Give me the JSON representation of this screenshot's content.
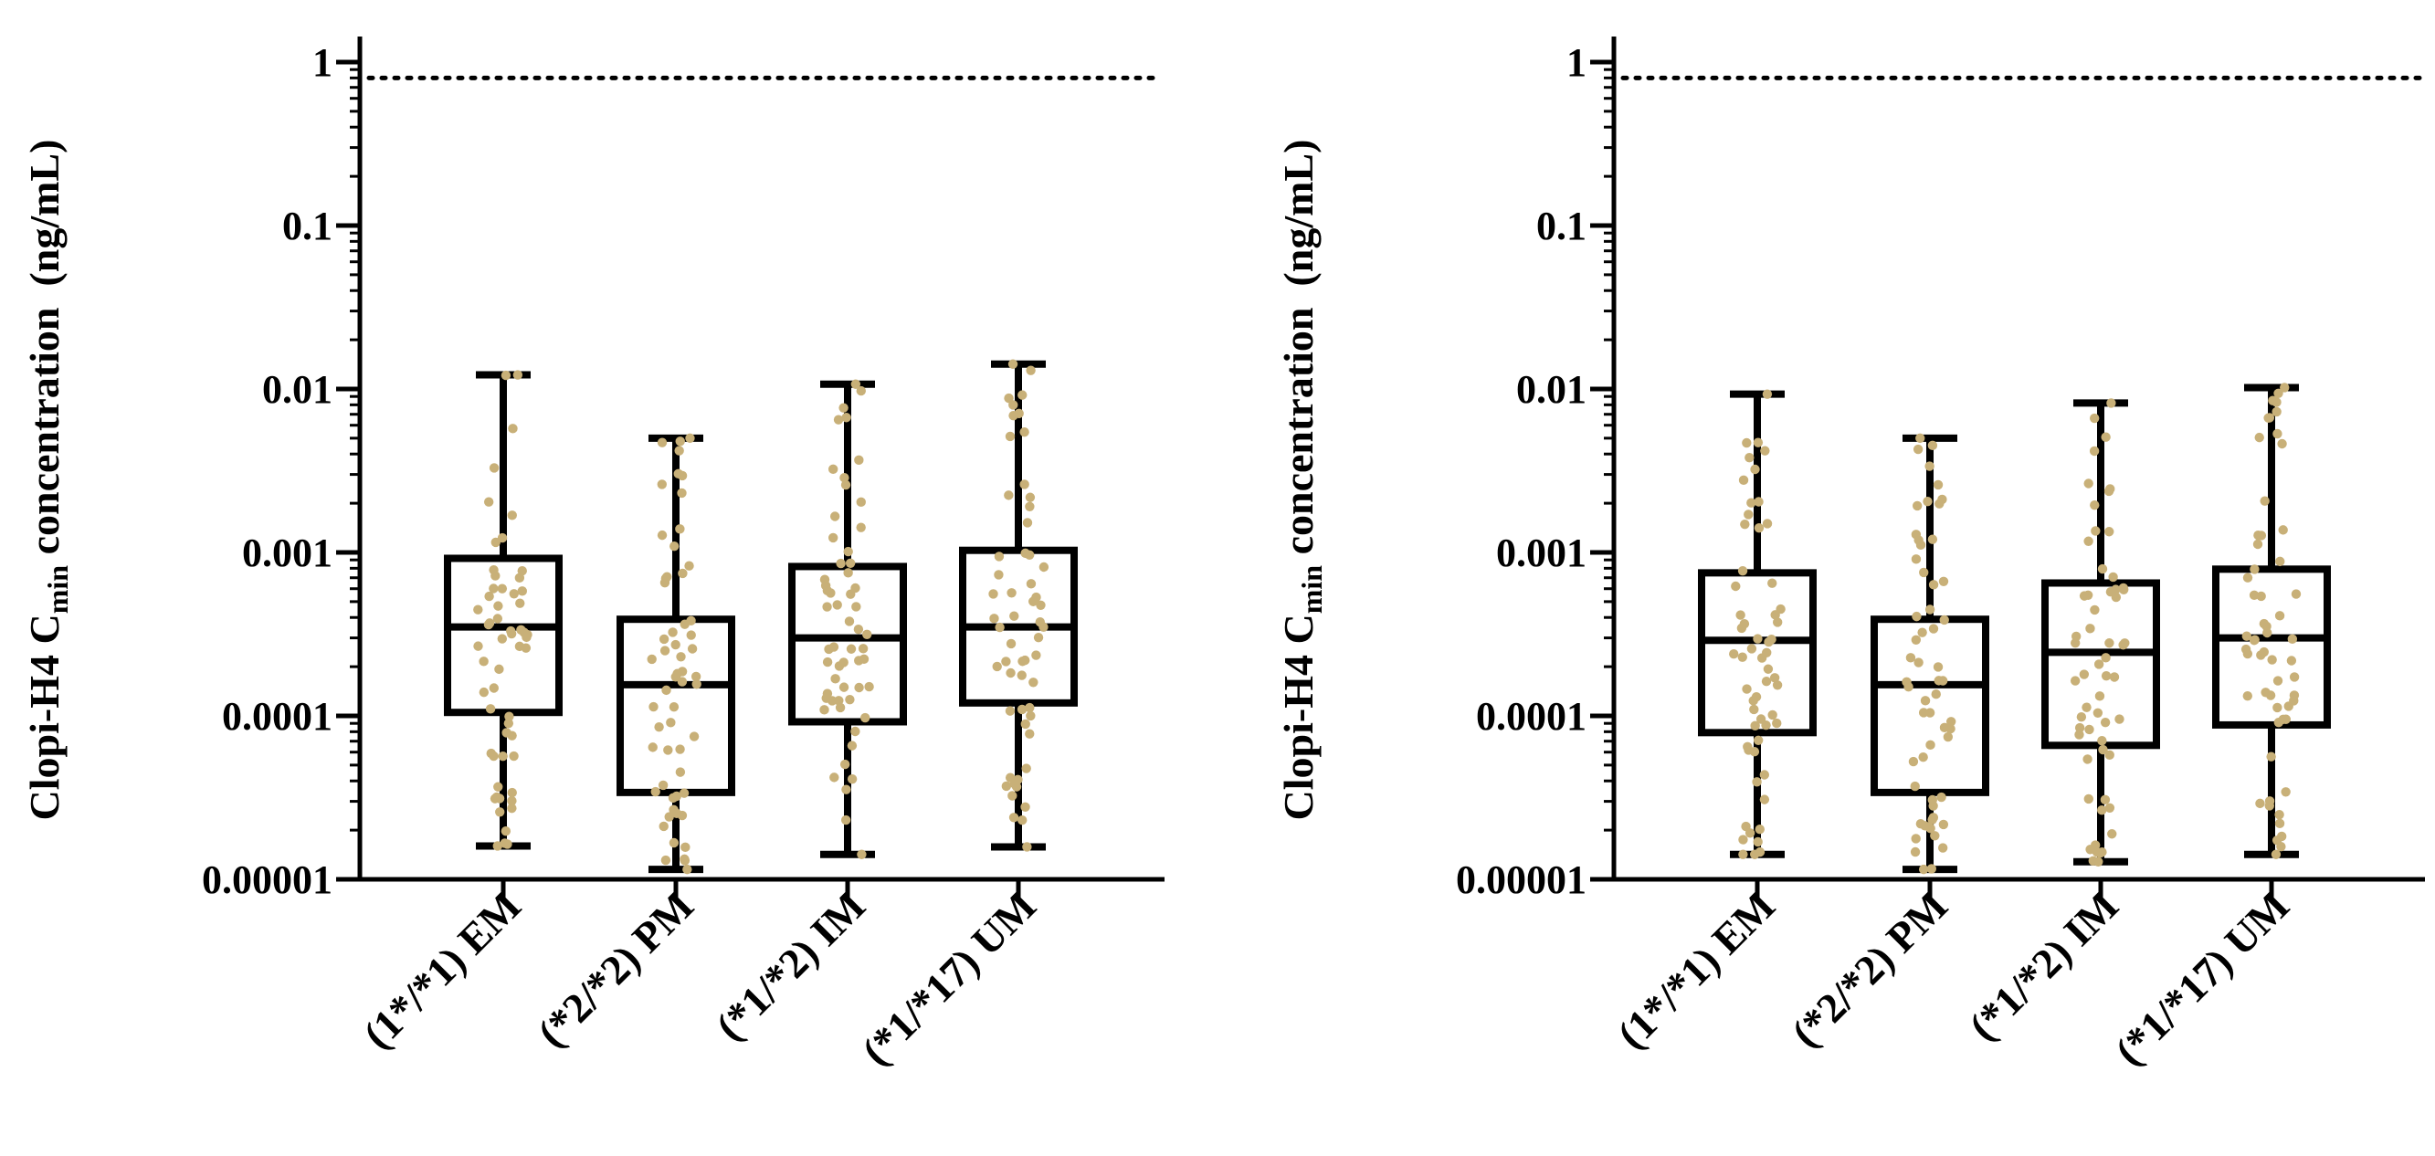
{
  "chart_data": [
    {
      "type": "box",
      "scale": "log",
      "ylim": [
        1e-05,
        1
      ],
      "yticks": [
        "1",
        "0.1",
        "0.01",
        "0.001",
        "0.0001",
        "0.00001"
      ],
      "ytick_values": [
        1,
        0.1,
        0.01,
        0.001,
        0.0001,
        1e-05
      ],
      "ylabel": {
        "prefix": "Clopi-H4 C",
        "subscript": "min",
        "suffix": " concentration  (ng/mL)"
      },
      "reference_line": {
        "value": 0.8,
        "style": "dotted"
      },
      "point_color": "#c8b078",
      "categories": [
        "(1*/*1) EM",
        "(*2/*2) PM",
        "(*1/*2) IM",
        "(*1/*17) UM"
      ],
      "boxes": [
        {
          "min": 1.6e-05,
          "q1": 0.000105,
          "median": 0.00035,
          "q3": 0.00092,
          "max": 0.0122
        },
        {
          "min": 1.15e-05,
          "q1": 3.4e-05,
          "median": 0.000155,
          "q3": 0.00039,
          "max": 0.005
        },
        {
          "min": 1.42e-05,
          "q1": 9.2e-05,
          "median": 0.0003,
          "q3": 0.00082,
          "max": 0.0107
        },
        {
          "min": 1.58e-05,
          "q1": 0.00012,
          "median": 0.00035,
          "q3": 0.00103,
          "max": 0.0142
        }
      ]
    },
    {
      "type": "box",
      "scale": "log",
      "ylim": [
        1e-05,
        1
      ],
      "yticks": [
        "1",
        "0.1",
        "0.01",
        "0.001",
        "0.0001",
        "0.00001"
      ],
      "ytick_values": [
        1,
        0.1,
        0.01,
        0.001,
        0.0001,
        1e-05
      ],
      "ylabel": {
        "prefix": "Clopi-H4 C",
        "subscript": "min",
        "suffix": " concentration  (ng/mL)"
      },
      "reference_line": {
        "value": 0.8,
        "style": "dotted"
      },
      "point_color": "#c8b078",
      "categories": [
        "(1*/*1) EM",
        "(*2/*2) PM",
        "(*1/*2) IM",
        "(*1/*17) UM"
      ],
      "boxes": [
        {
          "min": 1.42e-05,
          "q1": 7.9e-05,
          "median": 0.00029,
          "q3": 0.00075,
          "max": 0.0093
        },
        {
          "min": 1.15e-05,
          "q1": 3.4e-05,
          "median": 0.000155,
          "q3": 0.00039,
          "max": 0.005
        },
        {
          "min": 1.28e-05,
          "q1": 6.6e-05,
          "median": 0.000245,
          "q3": 0.00065,
          "max": 0.0082
        },
        {
          "min": 1.42e-05,
          "q1": 8.8e-05,
          "median": 0.0003,
          "q3": 0.00079,
          "max": 0.0102
        }
      ]
    }
  ]
}
